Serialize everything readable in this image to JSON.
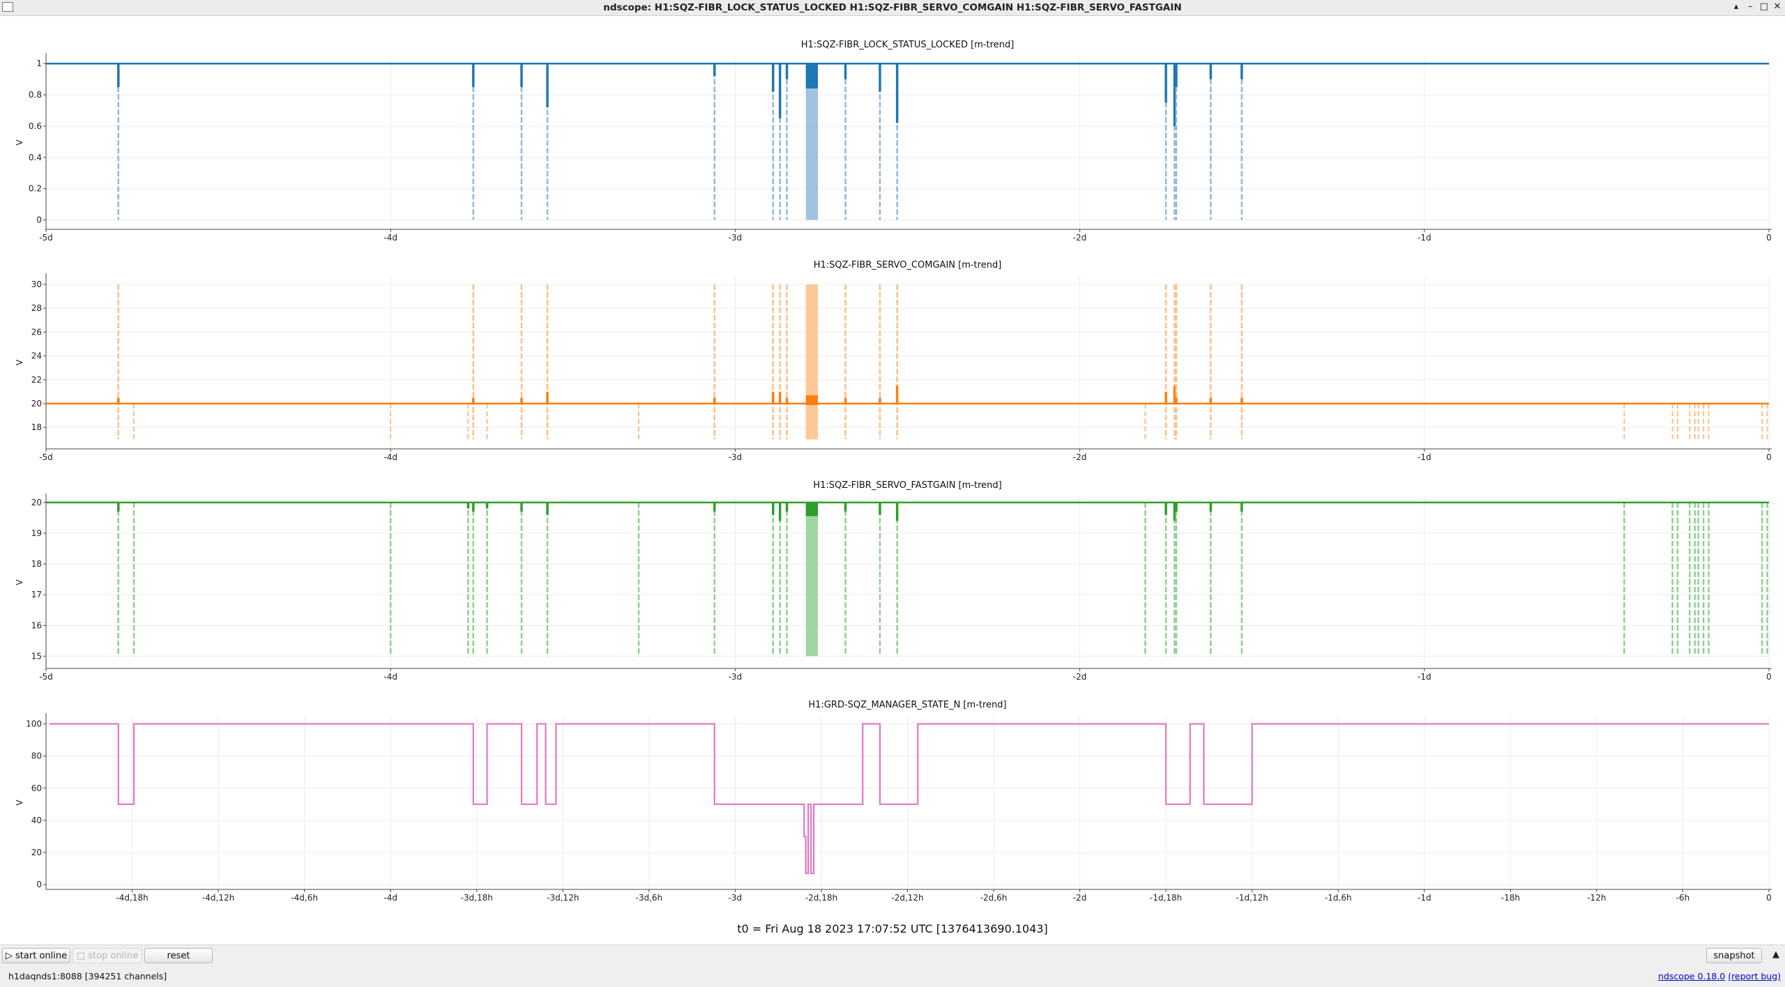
{
  "window": {
    "title": "ndscope: H1:SQZ-FIBR_LOCK_STATUS_LOCKED H1:SQZ-FIBR_SERVO_COMGAIN H1:SQZ-FIBR_SERVO_FASTGAIN",
    "controls": {
      "minimize": "▴",
      "minimize2": "–",
      "maximize": "□",
      "close": "✕"
    }
  },
  "t0_label": "t0 = Fri Aug 18 2023 17:07:52 UTC [1376413690.1043]",
  "buttons": {
    "start_online": "start online",
    "stop_online": "stop online",
    "reset": "reset",
    "snapshot": "snapshot"
  },
  "status": {
    "server": "h1daqnds1:8088  [394251 channels]",
    "version": "ndscope 0.18.0",
    "report": "(report bug)"
  },
  "colors": {
    "blue": "#1f77b4",
    "blue_light": "#8fb8da",
    "orange": "#ff7f0e",
    "orange_light": "#ffbe86",
    "green": "#2ca02c",
    "green_light": "#8fd08f",
    "pink": "#e377c2"
  },
  "chart_data": [
    {
      "type": "line",
      "title": "H1:SQZ-FIBR_LOCK_STATUS_LOCKED [m-trend]",
      "ylabel": "V",
      "ylim": [
        -0.06,
        1.05
      ],
      "yticks": [
        0,
        0.2,
        0.4,
        0.6,
        0.8,
        1
      ],
      "xlim": [
        -5.0,
        0
      ],
      "xticks": [
        {
          "v": -5,
          "l": "-5d"
        },
        {
          "v": -4,
          "l": "-4d"
        },
        {
          "v": -3,
          "l": "-3d"
        },
        {
          "v": -2,
          "l": "-2d"
        },
        {
          "v": -1,
          "l": "-1d"
        },
        {
          "v": 0,
          "l": "0"
        }
      ],
      "x_unit": "days",
      "series": [
        {
          "mean": 1.0
        }
      ],
      "dips": [
        {
          "x": -4.79,
          "min": 0,
          "mean": 0.85
        },
        {
          "x": -3.76,
          "min": 0,
          "mean": 0.85
        },
        {
          "x": -3.62,
          "min": 0,
          "mean": 0.85
        },
        {
          "x": -3.545,
          "min": 0,
          "mean": 0.72
        },
        {
          "x": -3.06,
          "min": 0,
          "mean": 0.92
        },
        {
          "x": -2.89,
          "min": 0,
          "mean": 0.82
        },
        {
          "x": -2.87,
          "min": 0,
          "mean": 0.65
        },
        {
          "x": -2.85,
          "min": 0,
          "mean": 0.9
        },
        {
          "x": -2.68,
          "min": 0,
          "mean": 0.9
        },
        {
          "x": -2.58,
          "min": 0,
          "mean": 0.82
        },
        {
          "x": -2.53,
          "min": 0,
          "mean": 0.62
        },
        {
          "x": -1.75,
          "min": 0,
          "mean": 0.75
        },
        {
          "x": -1.725,
          "min": 0,
          "mean": 0.6
        },
        {
          "x": -1.72,
          "min": 0,
          "mean": 0.85
        },
        {
          "x": -1.62,
          "min": 0,
          "mean": 0.9
        },
        {
          "x": -1.53,
          "min": 0,
          "mean": 0.9
        }
      ],
      "bands": [
        {
          "x0": -2.795,
          "x1": -2.76,
          "min": 0,
          "mean": 0.85
        }
      ]
    },
    {
      "type": "line",
      "title": "H1:SQZ-FIBR_SERVO_COMGAIN [m-trend]",
      "ylabel": "V",
      "ylim": [
        16.2,
        30.7
      ],
      "yticks": [
        18,
        20,
        22,
        24,
        26,
        28,
        30
      ],
      "xlim": [
        -5.0,
        0
      ],
      "xticks": [
        {
          "v": -5,
          "l": "-5d"
        },
        {
          "v": -4,
          "l": "-4d"
        },
        {
          "v": -3,
          "l": "-3d"
        },
        {
          "v": -2,
          "l": "-2d"
        },
        {
          "v": -1,
          "l": "-1d"
        },
        {
          "v": 0,
          "l": "0"
        }
      ],
      "x_unit": "days",
      "series": [
        {
          "mean": 20.0
        }
      ],
      "spikes": [
        {
          "x": -4.79,
          "max": 30,
          "min": 17,
          "mean": 20.5
        },
        {
          "x": -3.76,
          "max": 30,
          "min": 17,
          "mean": 20.5
        },
        {
          "x": -3.62,
          "max": 30,
          "min": 17,
          "mean": 20.5
        },
        {
          "x": -3.545,
          "max": 30,
          "min": 17,
          "mean": 21
        },
        {
          "x": -3.06,
          "max": 30,
          "min": 17,
          "mean": 20.5
        },
        {
          "x": -2.89,
          "max": 30,
          "min": 17,
          "mean": 21
        },
        {
          "x": -2.87,
          "max": 30,
          "min": 17,
          "mean": 21
        },
        {
          "x": -2.85,
          "max": 30,
          "min": 17,
          "mean": 20.5
        },
        {
          "x": -2.68,
          "max": 30,
          "min": 17,
          "mean": 20.5
        },
        {
          "x": -2.58,
          "max": 30,
          "min": 17,
          "mean": 20.5
        },
        {
          "x": -2.53,
          "max": 30,
          "min": 17,
          "mean": 21.5
        },
        {
          "x": -1.75,
          "max": 30,
          "min": 17,
          "mean": 21
        },
        {
          "x": -1.725,
          "max": 30,
          "min": 17,
          "mean": 21.5
        },
        {
          "x": -1.72,
          "max": 30,
          "min": 17,
          "mean": 20.5
        },
        {
          "x": -1.62,
          "max": 30,
          "min": 17,
          "mean": 20.5
        },
        {
          "x": -1.53,
          "max": 30,
          "min": 17,
          "mean": 20.5
        }
      ],
      "lows": [
        -4.745,
        -4.0,
        -3.775,
        -3.72,
        -3.28,
        -1.81,
        -0.42,
        -0.28,
        -0.265,
        -0.23,
        -0.215,
        -0.205,
        -0.19,
        -0.175,
        -0.02,
        -0.005
      ],
      "bands": [
        {
          "x0": -2.795,
          "x1": -2.76,
          "max": 30,
          "min": 17,
          "mean": 20.7
        }
      ]
    },
    {
      "type": "line",
      "title": "H1:SQZ-FIBR_SERVO_FASTGAIN [m-trend]",
      "ylabel": "V",
      "ylim": [
        14.6,
        20.2
      ],
      "yticks": [
        15,
        16,
        17,
        18,
        19,
        20
      ],
      "xlim": [
        -5.0,
        0
      ],
      "xticks": [
        {
          "v": -5,
          "l": "-5d"
        },
        {
          "v": -4,
          "l": "-4d"
        },
        {
          "v": -3,
          "l": "-3d"
        },
        {
          "v": -2,
          "l": "-2d"
        },
        {
          "v": -1,
          "l": "-1d"
        },
        {
          "v": 0,
          "l": "0"
        }
      ],
      "x_unit": "days",
      "series": [
        {
          "mean": 20.0
        }
      ],
      "dips": [
        {
          "x": -4.79,
          "min": 15,
          "mean": 19.7
        },
        {
          "x": -4.745,
          "min": 15,
          "mean": 20
        },
        {
          "x": -4.0,
          "min": 15,
          "mean": 20
        },
        {
          "x": -3.775,
          "min": 15,
          "mean": 19.8
        },
        {
          "x": -3.76,
          "min": 15,
          "mean": 19.7
        },
        {
          "x": -3.72,
          "min": 15,
          "mean": 19.8
        },
        {
          "x": -3.62,
          "min": 15,
          "mean": 19.7
        },
        {
          "x": -3.545,
          "min": 15,
          "mean": 19.6
        },
        {
          "x": -3.28,
          "min": 15,
          "mean": 20
        },
        {
          "x": -3.06,
          "min": 15,
          "mean": 19.7
        },
        {
          "x": -2.89,
          "min": 15,
          "mean": 19.6
        },
        {
          "x": -2.87,
          "min": 15,
          "mean": 19.4
        },
        {
          "x": -2.85,
          "min": 15,
          "mean": 19.7
        },
        {
          "x": -2.68,
          "min": 15,
          "mean": 19.7
        },
        {
          "x": -2.58,
          "min": 15,
          "mean": 19.6
        },
        {
          "x": -2.53,
          "min": 15,
          "mean": 19.4
        },
        {
          "x": -1.81,
          "min": 15,
          "mean": 20
        },
        {
          "x": -1.75,
          "min": 15,
          "mean": 19.6
        },
        {
          "x": -1.725,
          "min": 15,
          "mean": 19.4
        },
        {
          "x": -1.72,
          "min": 15,
          "mean": 19.7
        },
        {
          "x": -1.62,
          "min": 15,
          "mean": 19.7
        },
        {
          "x": -1.53,
          "min": 15,
          "mean": 19.7
        },
        {
          "x": -0.42,
          "min": 15,
          "mean": 20
        },
        {
          "x": -0.28,
          "min": 15,
          "mean": 20
        },
        {
          "x": -0.265,
          "min": 15,
          "mean": 20
        },
        {
          "x": -0.23,
          "min": 15,
          "mean": 20
        },
        {
          "x": -0.215,
          "min": 15,
          "mean": 20
        },
        {
          "x": -0.205,
          "min": 15,
          "mean": 20
        },
        {
          "x": -0.19,
          "min": 15,
          "mean": 20
        },
        {
          "x": -0.175,
          "min": 15,
          "mean": 20
        },
        {
          "x": -0.02,
          "min": 15,
          "mean": 20
        },
        {
          "x": -0.005,
          "min": 15,
          "mean": 20
        }
      ],
      "bands": [
        {
          "x0": -2.795,
          "x1": -2.76,
          "min": 15,
          "mean": 19.6
        }
      ]
    },
    {
      "type": "line",
      "title": "H1:GRD-SQZ_MANAGER_STATE_N [m-trend]",
      "ylabel": "V",
      "ylim": [
        -3,
        105
      ],
      "yticks": [
        0,
        20,
        40,
        60,
        80,
        100
      ],
      "xlim": [
        -5.0,
        0
      ],
      "xticks": [
        {
          "v": -4.75,
          "l": "-4d,18h"
        },
        {
          "v": -4.5,
          "l": "-4d,12h"
        },
        {
          "v": -4.25,
          "l": "-4d,6h"
        },
        {
          "v": -4,
          "l": "-4d"
        },
        {
          "v": -3.75,
          "l": "-3d,18h"
        },
        {
          "v": -3.5,
          "l": "-3d,12h"
        },
        {
          "v": -3.25,
          "l": "-3d,6h"
        },
        {
          "v": -3,
          "l": "-3d"
        },
        {
          "v": -2.75,
          "l": "-2d,18h"
        },
        {
          "v": -2.5,
          "l": "-2d,12h"
        },
        {
          "v": -2.25,
          "l": "-2d,6h"
        },
        {
          "v": -2,
          "l": "-2d"
        },
        {
          "v": -1.75,
          "l": "-1d,18h"
        },
        {
          "v": -1.5,
          "l": "-1d,12h"
        },
        {
          "v": -1.25,
          "l": "-1d,6h"
        },
        {
          "v": -1,
          "l": "-1d"
        },
        {
          "v": -0.75,
          "l": "-18h"
        },
        {
          "v": -0.5,
          "l": "-12h"
        },
        {
          "v": -0.25,
          "l": "-6h"
        },
        {
          "v": 0,
          "l": "0"
        }
      ],
      "x_unit": "days",
      "series": [
        {
          "points": [
            [
              -4.99,
              100
            ],
            [
              -4.79,
              100
            ],
            [
              -4.79,
              50
            ],
            [
              -4.745,
              50
            ],
            [
              -4.745,
              100
            ],
            [
              -3.76,
              100
            ],
            [
              -3.76,
              50
            ],
            [
              -3.72,
              50
            ],
            [
              -3.72,
              100
            ],
            [
              -3.62,
              100
            ],
            [
              -3.62,
              50
            ],
            [
              -3.575,
              50
            ],
            [
              -3.575,
              100
            ],
            [
              -3.55,
              100
            ],
            [
              -3.55,
              50
            ],
            [
              -3.52,
              50
            ],
            [
              -3.52,
              100
            ],
            [
              -3.06,
              100
            ],
            [
              -3.06,
              50
            ],
            [
              -2.8,
              50
            ],
            [
              -2.8,
              30
            ],
            [
              -2.795,
              30
            ],
            [
              -2.795,
              7
            ],
            [
              -2.788,
              7
            ],
            [
              -2.788,
              50
            ],
            [
              -2.78,
              50
            ],
            [
              -2.78,
              7
            ],
            [
              -2.772,
              7
            ],
            [
              -2.772,
              50
            ],
            [
              -2.63,
              50
            ],
            [
              -2.63,
              100
            ],
            [
              -2.58,
              100
            ],
            [
              -2.58,
              50
            ],
            [
              -2.47,
              50
            ],
            [
              -2.47,
              100
            ],
            [
              -1.75,
              100
            ],
            [
              -1.75,
              50
            ],
            [
              -1.68,
              50
            ],
            [
              -1.68,
              100
            ],
            [
              -1.64,
              100
            ],
            [
              -1.64,
              50
            ],
            [
              -1.5,
              50
            ],
            [
              -1.5,
              100
            ],
            [
              0,
              100
            ]
          ]
        }
      ]
    }
  ]
}
